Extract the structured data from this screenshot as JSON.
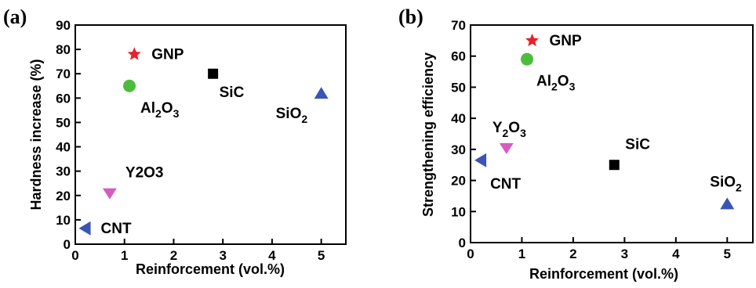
{
  "chart_data": [
    {
      "type": "scatter",
      "panel_label": "(a)",
      "xlabel": "Reinforcement (vol.%)",
      "ylabel": "Hardness increase (%)",
      "xlim": [
        0,
        5.5
      ],
      "ylim": [
        0,
        90
      ],
      "xticks": [
        "0",
        "1",
        "2",
        "3",
        "4",
        "5"
      ],
      "yticks": [
        "0",
        "10",
        "20",
        "30",
        "40",
        "50",
        "60",
        "70",
        "80",
        "90"
      ],
      "grid": false,
      "points": [
        {
          "name": "GNP",
          "x": 1.2,
          "y": 78,
          "marker": "star",
          "color": "#e8202a",
          "label_main": "GNP",
          "label_sub": ""
        },
        {
          "name": "Al2O3",
          "x": 1.1,
          "y": 65,
          "marker": "circle",
          "color": "#4cbc3c",
          "label_main": "Al",
          "label_sub": "2",
          "label_main2": "O",
          "label_sub2": "3"
        },
        {
          "name": "SiC",
          "x": 2.8,
          "y": 70,
          "marker": "square",
          "color": "#000000",
          "label_main": "SiC",
          "label_sub": ""
        },
        {
          "name": "SiO2",
          "x": 5.0,
          "y": 62,
          "marker": "triangle-up",
          "color": "#3a55b4",
          "label_main": "SiO",
          "label_sub": "2"
        },
        {
          "name": "Y2O3",
          "x": 0.7,
          "y": 21,
          "marker": "triangle-down",
          "color": "#d45cc2",
          "label_main": "Y2O3",
          "label_sub": ""
        },
        {
          "name": "CNT",
          "x": 0.2,
          "y": 6.5,
          "marker": "triangle-left",
          "color": "#3a55b4",
          "label_main": "CNT",
          "label_sub": ""
        }
      ]
    },
    {
      "type": "scatter",
      "panel_label": "(b)",
      "xlabel": "Reinforcement (vol.%)",
      "ylabel": "Strengthening efficiency",
      "xlim": [
        0,
        5.5
      ],
      "ylim": [
        0,
        70
      ],
      "xticks": [
        "0",
        "1",
        "2",
        "3",
        "4",
        "5"
      ],
      "yticks": [
        "0",
        "10",
        "20",
        "30",
        "40",
        "50",
        "60",
        "70"
      ],
      "grid": false,
      "points": [
        {
          "name": "GNP",
          "x": 1.2,
          "y": 65,
          "marker": "star",
          "color": "#e8202a",
          "label_main": "GNP",
          "label_sub": ""
        },
        {
          "name": "Al2O3",
          "x": 1.1,
          "y": 59,
          "marker": "circle",
          "color": "#4cbc3c",
          "label_main": "Al",
          "label_sub": "2",
          "label_main2": "O",
          "label_sub2": "3"
        },
        {
          "name": "Y2O3",
          "x": 0.7,
          "y": 30.5,
          "marker": "triangle-down",
          "color": "#d45cc2",
          "label_main": "Y",
          "label_sub": "2",
          "label_main2": "O",
          "label_sub2": "3"
        },
        {
          "name": "CNT",
          "x": 0.2,
          "y": 26.5,
          "marker": "triangle-left",
          "color": "#3a55b4",
          "label_main": "CNT",
          "label_sub": ""
        },
        {
          "name": "SiC",
          "x": 2.8,
          "y": 25,
          "marker": "square",
          "color": "#000000",
          "label_main": "SiC",
          "label_sub": ""
        },
        {
          "name": "SiO2",
          "x": 5.0,
          "y": 12.5,
          "marker": "triangle-up",
          "color": "#3a55b4",
          "label_main": "SiO",
          "label_sub": "2"
        }
      ]
    }
  ]
}
